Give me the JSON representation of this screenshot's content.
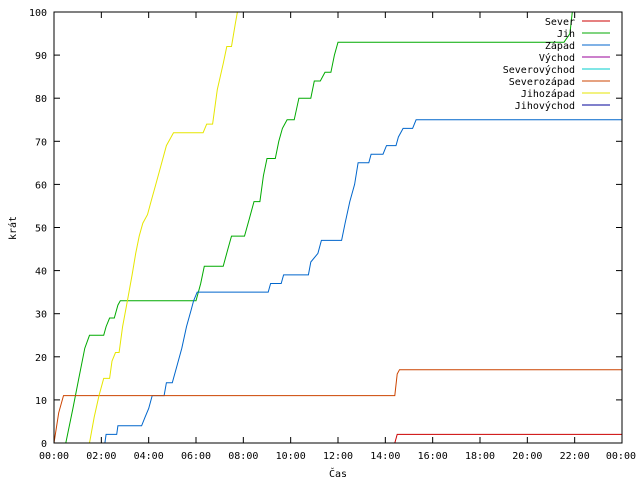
{
  "chart_data": {
    "type": "line",
    "xlabel": "Čas",
    "ylabel": "krát",
    "xlim": [
      0,
      24
    ],
    "ylim": [
      0,
      100
    ],
    "grid": false,
    "legend_position": "top-right",
    "x_ticks": [
      {
        "value": 0,
        "label": "00:00"
      },
      {
        "value": 2,
        "label": "02:00"
      },
      {
        "value": 4,
        "label": "04:00"
      },
      {
        "value": 6,
        "label": "06:00"
      },
      {
        "value": 8,
        "label": "08:00"
      },
      {
        "value": 10,
        "label": "10:00"
      },
      {
        "value": 12,
        "label": "12:00"
      },
      {
        "value": 14,
        "label": "14:00"
      },
      {
        "value": 16,
        "label": "16:00"
      },
      {
        "value": 18,
        "label": "18:00"
      },
      {
        "value": 20,
        "label": "20:00"
      },
      {
        "value": 22,
        "label": "22:00"
      },
      {
        "value": 24,
        "label": "00:00"
      }
    ],
    "y_ticks": [
      0,
      10,
      20,
      30,
      40,
      50,
      60,
      70,
      80,
      90,
      100
    ],
    "series": [
      {
        "name": "Sever",
        "color": "#cc0000",
        "points": [
          [
            14.4,
            0
          ],
          [
            14.5,
            2
          ],
          [
            24,
            2
          ]
        ]
      },
      {
        "name": "Jih",
        "color": "#00aa00",
        "points": [
          [
            0.5,
            0
          ],
          [
            0.8,
            8
          ],
          [
            1.05,
            15
          ],
          [
            1.3,
            22
          ],
          [
            1.5,
            25
          ],
          [
            2.1,
            25
          ],
          [
            2.2,
            27
          ],
          [
            2.35,
            29
          ],
          [
            2.55,
            29
          ],
          [
            2.7,
            32
          ],
          [
            2.8,
            33
          ],
          [
            6.0,
            33
          ],
          [
            6.2,
            37
          ],
          [
            6.35,
            41
          ],
          [
            7.15,
            41
          ],
          [
            7.35,
            45
          ],
          [
            7.5,
            48
          ],
          [
            8.05,
            48
          ],
          [
            8.25,
            52
          ],
          [
            8.45,
            56
          ],
          [
            8.7,
            56
          ],
          [
            8.85,
            62
          ],
          [
            9.0,
            66
          ],
          [
            9.35,
            66
          ],
          [
            9.5,
            70
          ],
          [
            9.65,
            73
          ],
          [
            9.85,
            75
          ],
          [
            10.15,
            75
          ],
          [
            10.35,
            80
          ],
          [
            10.85,
            80
          ],
          [
            11.0,
            84
          ],
          [
            11.25,
            84
          ],
          [
            11.45,
            86
          ],
          [
            11.7,
            86
          ],
          [
            11.85,
            90
          ],
          [
            12.0,
            93
          ],
          [
            21.55,
            93
          ],
          [
            21.8,
            95
          ],
          [
            21.9,
            100
          ]
        ]
      },
      {
        "name": "Západ",
        "color": "#0066cc",
        "points": [
          [
            2.15,
            0
          ],
          [
            2.2,
            2
          ],
          [
            2.65,
            2
          ],
          [
            2.7,
            4
          ],
          [
            3.7,
            4
          ],
          [
            3.85,
            6
          ],
          [
            4.0,
            8
          ],
          [
            4.15,
            11
          ],
          [
            4.65,
            11
          ],
          [
            4.75,
            14
          ],
          [
            5.0,
            14
          ],
          [
            5.2,
            18
          ],
          [
            5.4,
            22
          ],
          [
            5.6,
            27
          ],
          [
            5.8,
            31
          ],
          [
            5.9,
            33
          ],
          [
            6.05,
            35
          ],
          [
            9.05,
            35
          ],
          [
            9.15,
            37
          ],
          [
            9.6,
            37
          ],
          [
            9.7,
            39
          ],
          [
            10.75,
            39
          ],
          [
            10.85,
            42
          ],
          [
            11.15,
            44
          ],
          [
            11.3,
            47
          ],
          [
            12.15,
            47
          ],
          [
            12.3,
            51
          ],
          [
            12.5,
            56
          ],
          [
            12.7,
            60
          ],
          [
            12.85,
            65
          ],
          [
            13.3,
            65
          ],
          [
            13.4,
            67
          ],
          [
            13.9,
            67
          ],
          [
            14.05,
            69
          ],
          [
            14.45,
            69
          ],
          [
            14.55,
            71
          ],
          [
            14.75,
            73
          ],
          [
            15.15,
            73
          ],
          [
            15.3,
            75
          ],
          [
            24,
            75
          ]
        ]
      },
      {
        "name": "Východ",
        "color": "#990099",
        "points": []
      },
      {
        "name": "Severovýchod",
        "color": "#00cccc",
        "points": []
      },
      {
        "name": "Severozápad",
        "color": "#cc4400",
        "points": [
          [
            0.0,
            0
          ],
          [
            0.2,
            7
          ],
          [
            0.4,
            11
          ],
          [
            14.4,
            11
          ],
          [
            14.5,
            16
          ],
          [
            14.6,
            17
          ],
          [
            24,
            17
          ]
        ]
      },
      {
        "name": "Jihozápad",
        "color": "#e6e600",
        "points": [
          [
            1.5,
            0
          ],
          [
            1.7,
            6
          ],
          [
            1.9,
            11
          ],
          [
            2.1,
            15
          ],
          [
            2.35,
            15
          ],
          [
            2.45,
            19
          ],
          [
            2.6,
            21
          ],
          [
            2.75,
            21
          ],
          [
            2.9,
            27
          ],
          [
            3.1,
            33
          ],
          [
            3.3,
            39
          ],
          [
            3.45,
            44
          ],
          [
            3.6,
            48
          ],
          [
            3.75,
            51
          ],
          [
            3.95,
            53
          ],
          [
            4.1,
            56
          ],
          [
            4.3,
            60
          ],
          [
            4.5,
            64
          ],
          [
            4.75,
            69
          ],
          [
            5.05,
            72
          ],
          [
            6.3,
            72
          ],
          [
            6.45,
            74
          ],
          [
            6.7,
            74
          ],
          [
            6.9,
            82
          ],
          [
            7.15,
            88
          ],
          [
            7.3,
            92
          ],
          [
            7.5,
            92
          ],
          [
            7.65,
            97
          ],
          [
            7.75,
            100
          ]
        ]
      },
      {
        "name": "Jihovýchod",
        "color": "#000099",
        "points": []
      }
    ]
  }
}
